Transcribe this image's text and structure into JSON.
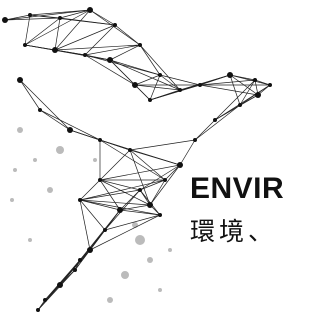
{
  "heading": {
    "title": "ENVIR",
    "subtitle": "環境、"
  }
}
